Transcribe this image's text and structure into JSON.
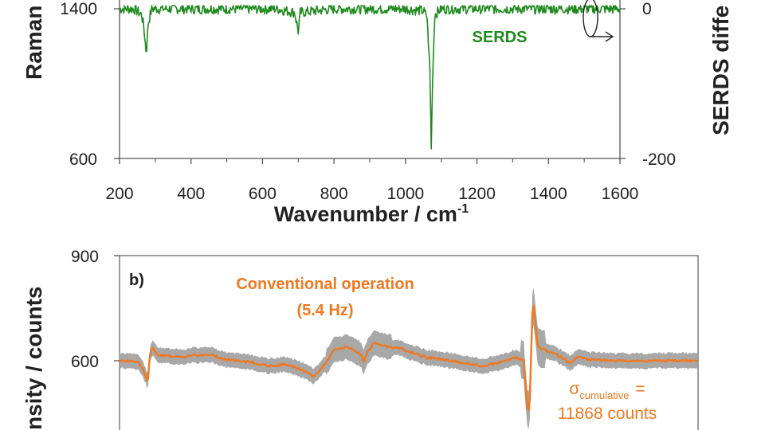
{
  "chart_data": [
    {
      "panel": "a",
      "type": "line",
      "xlabel": "Wavenumber / cm",
      "xlabel_superscript": "-1",
      "ylabel_left": "Raman",
      "ylabel_right": "SERDS diffe",
      "xlim": [
        200,
        1600
      ],
      "x_ticks": [
        "200",
        "400",
        "600",
        "800",
        "1000",
        "1200",
        "1400",
        "1600"
      ],
      "y_left_ticks_visible": [
        "1400",
        "600"
      ],
      "y_left_lim_visible": [
        600,
        1400
      ],
      "y_right_ticks_visible": [
        "0",
        "-200"
      ],
      "y_right_lim_visible": [
        -200,
        0
      ],
      "color": "#1e8a1e",
      "series": [
        {
          "name": "SERDS",
          "axis": "right",
          "baseline": 0,
          "points": [
            [
              200,
              0
            ],
            [
              240,
              0
            ],
            [
              262,
              -8
            ],
            [
              268,
              -25
            ],
            [
              275,
              -60
            ],
            [
              280,
              -20
            ],
            [
              290,
              0
            ],
            [
              400,
              0
            ],
            [
              500,
              0
            ],
            [
              600,
              0
            ],
            [
              640,
              0
            ],
            [
              690,
              -5
            ],
            [
              700,
              -30
            ],
            [
              706,
              -5
            ],
            [
              800,
              0
            ],
            [
              900,
              0
            ],
            [
              1000,
              0
            ],
            [
              1050,
              -3
            ],
            [
              1060,
              -10
            ],
            [
              1068,
              -80
            ],
            [
              1072,
              -185
            ],
            [
              1076,
              -90
            ],
            [
              1082,
              -8
            ],
            [
              1100,
              0
            ],
            [
              1200,
              0
            ],
            [
              1300,
              0
            ],
            [
              1400,
              0
            ],
            [
              1500,
              0
            ],
            [
              1600,
              0
            ]
          ]
        }
      ]
    },
    {
      "panel": "b",
      "type": "line",
      "panel_label": "b)",
      "ylabel": "nsity / counts",
      "y_ticks_visible": [
        "900",
        "600"
      ],
      "ylim_visible": [
        450,
        900
      ],
      "xlim": [
        200,
        1600
      ],
      "color": "#f07820",
      "band_color": "#a8a8a8",
      "band_halfwidth": 20,
      "series": [
        {
          "name": "Conventional operation (5.4 Hz)",
          "points": [
            [
              200,
              600
            ],
            [
              240,
              598
            ],
            [
              250,
              590
            ],
            [
              262,
              560
            ],
            [
              268,
              535
            ],
            [
              274,
              620
            ],
            [
              280,
              635
            ],
            [
              295,
              615
            ],
            [
              350,
              612
            ],
            [
              420,
              618
            ],
            [
              450,
              605
            ],
            [
              520,
              595
            ],
            [
              560,
              585
            ],
            [
              600,
              590
            ],
            [
              640,
              575
            ],
            [
              670,
              555
            ],
            [
              700,
              595
            ],
            [
              720,
              630
            ],
            [
              750,
              640
            ],
            [
              770,
              630
            ],
            [
              785,
              615
            ],
            [
              790,
              595
            ],
            [
              800,
              625
            ],
            [
              815,
              650
            ],
            [
              840,
              642
            ],
            [
              880,
              635
            ],
            [
              940,
              610
            ],
            [
              1000,
              600
            ],
            [
              1040,
              592
            ],
            [
              1080,
              585
            ],
            [
              1120,
              595
            ],
            [
              1160,
              610
            ],
            [
              1178,
              600
            ],
            [
              1186,
              470
            ],
            [
              1192,
              450
            ],
            [
              1197,
              660
            ],
            [
              1200,
              780
            ],
            [
              1205,
              720
            ],
            [
              1212,
              640
            ],
            [
              1240,
              625
            ],
            [
              1270,
              610
            ],
            [
              1290,
              593
            ],
            [
              1310,
              610
            ],
            [
              1340,
              603
            ],
            [
              1400,
              600
            ],
            [
              1500,
              600
            ],
            [
              1600,
              600
            ]
          ]
        }
      ],
      "annotations": {
        "line1": "Conventional operation",
        "line2": "(5.4 Hz)",
        "sigma_symbol": "σ",
        "sigma_subscript": "cumulative",
        "sigma_equals": "=",
        "sigma_value": "11868 counts"
      }
    }
  ]
}
